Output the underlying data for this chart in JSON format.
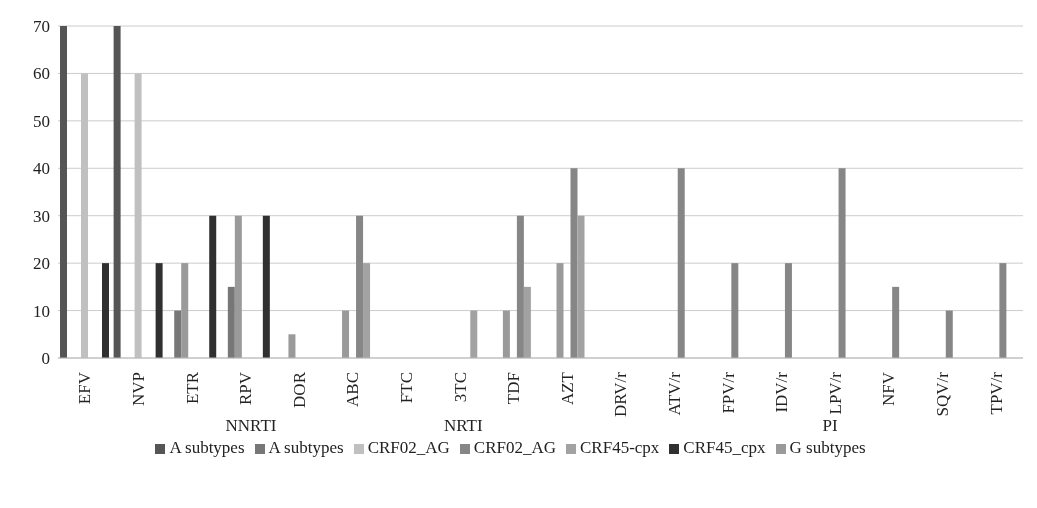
{
  "chart_data": {
    "type": "bar",
    "categories": [
      "EFV",
      "NVP",
      "ETR",
      "RPV",
      "DOR",
      "ABC",
      "FTC",
      "3TC",
      "TDF",
      "AZT",
      "DRV/r",
      "ATV/r",
      "FPV/r",
      "IDV/r",
      "LPV/r",
      "NFV",
      "SQV/r",
      "TPV/r"
    ],
    "series": [
      {
        "name": "A subtypes",
        "color": "#555555",
        "values": [
          70,
          70,
          null,
          null,
          null,
          null,
          null,
          null,
          null,
          null,
          null,
          null,
          null,
          null,
          null,
          null,
          null,
          null
        ]
      },
      {
        "name": "A subtypes",
        "color": "#777777",
        "values": [
          null,
          null,
          10,
          15,
          0,
          null,
          null,
          null,
          null,
          null,
          null,
          null,
          null,
          null,
          null,
          null,
          null,
          null
        ]
      },
      {
        "name": "G subtypes",
        "color": "#9a9a9a",
        "values": [
          null,
          null,
          20,
          30,
          5,
          10,
          0,
          0,
          10,
          20,
          null,
          null,
          null,
          null,
          null,
          null,
          null,
          null
        ]
      },
      {
        "name": "CRF02_AG",
        "color": "#c0c0c0",
        "values": [
          60,
          60,
          null,
          null,
          null,
          null,
          null,
          null,
          null,
          null,
          null,
          null,
          null,
          null,
          null,
          null,
          null,
          null
        ]
      },
      {
        "name": "CRF02_AG",
        "color": "#868686",
        "values": [
          null,
          null,
          0,
          0,
          0,
          30,
          0,
          0,
          30,
          40,
          0,
          40,
          20,
          20,
          40,
          15,
          10,
          20
        ]
      },
      {
        "name": "CRF45-cpx",
        "color": "#a2a2a2",
        "values": [
          null,
          null,
          null,
          null,
          null,
          20,
          0,
          10,
          15,
          30,
          null,
          null,
          null,
          null,
          null,
          null,
          null,
          null
        ]
      },
      {
        "name": "CRF45_cpx",
        "color": "#303030",
        "values": [
          20,
          20,
          30,
          30,
          0,
          null,
          null,
          null,
          null,
          null,
          null,
          null,
          null,
          null,
          null,
          null,
          null,
          null
        ]
      }
    ],
    "annotations": [
      "NNRTI",
      "NRTI",
      "PI"
    ],
    "ylim": [
      0,
      70
    ],
    "yticks": [
      0,
      10,
      20,
      30,
      40,
      50,
      60,
      70
    ],
    "grid": "y",
    "legend": "bottom"
  }
}
